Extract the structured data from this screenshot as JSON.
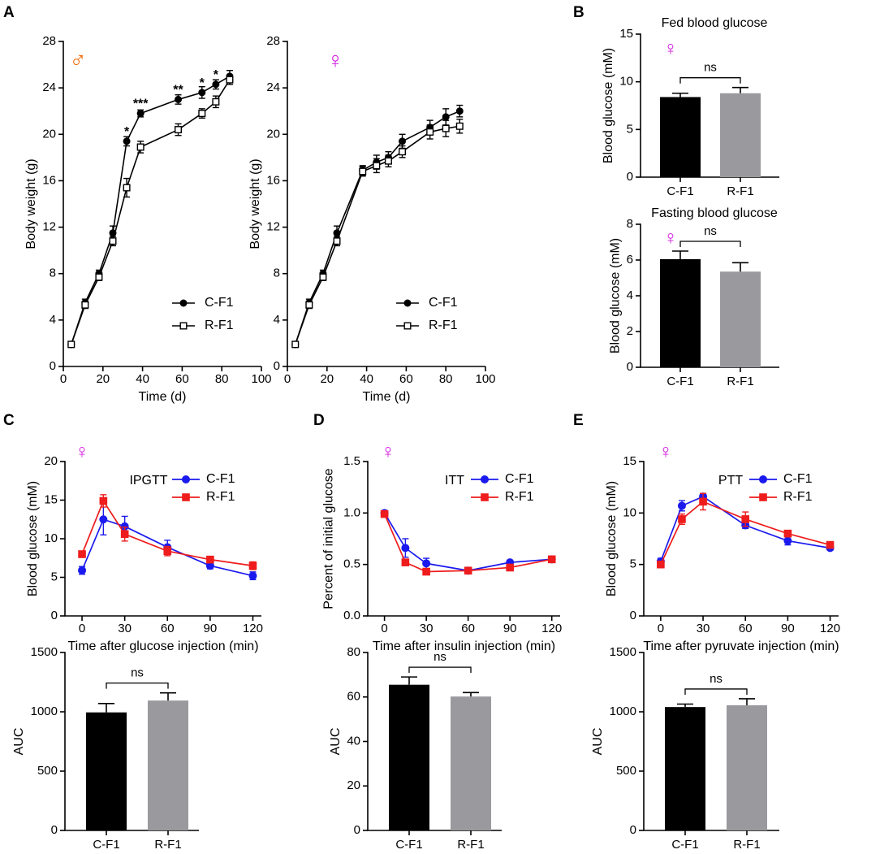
{
  "colors": {
    "black": "#000000",
    "gray": "#9a9a9e",
    "blue": "#1a1aee",
    "red": "#ee1c1c",
    "male": "#f06a0a",
    "female": "#d21ee0"
  },
  "chart_data": [
    {
      "id": "weight_male",
      "panel": "A",
      "type": "line",
      "sex_symbol": "♂",
      "sex_color": "male",
      "xlabel": "Time (d)",
      "ylabel": "Body weight (g)",
      "xlim": [
        0,
        100
      ],
      "ylim": [
        0,
        28
      ],
      "xticks": [
        0,
        20,
        40,
        60,
        80,
        100
      ],
      "yticks": [
        0,
        4,
        8,
        12,
        16,
        20,
        24,
        28
      ],
      "series": [
        {
          "name": "C-F1",
          "marker": "filled-circle",
          "x": [
            4,
            11,
            18,
            25,
            32,
            39,
            58,
            70,
            77,
            84
          ],
          "y": [
            1.9,
            5.5,
            8.0,
            11.5,
            19.4,
            21.8,
            23.0,
            23.6,
            24.3,
            25.0
          ],
          "err": [
            0.2,
            0.3,
            0.3,
            0.6,
            0.4,
            0.3,
            0.4,
            0.5,
            0.4,
            0.5
          ]
        },
        {
          "name": "R-F1",
          "marker": "open-square",
          "x": [
            4,
            11,
            18,
            25,
            32,
            39,
            58,
            70,
            77,
            84
          ],
          "y": [
            1.9,
            5.3,
            7.7,
            10.8,
            15.4,
            18.9,
            20.4,
            21.8,
            22.8,
            24.7
          ],
          "err": [
            0.2,
            0.3,
            0.3,
            0.4,
            0.8,
            0.5,
            0.5,
            0.4,
            0.5,
            0.4
          ]
        }
      ],
      "annotations": [
        {
          "text": "*",
          "x": 32,
          "y": 20.3
        },
        {
          "text": "***",
          "x": 39,
          "y": 22.7
        },
        {
          "text": "**",
          "x": 58,
          "y": 23.9
        },
        {
          "text": "*",
          "x": 70,
          "y": 24.5
        },
        {
          "text": "*",
          "x": 77,
          "y": 25.2
        }
      ],
      "legend": [
        "C-F1",
        "R-F1"
      ]
    },
    {
      "id": "weight_female",
      "panel": "",
      "type": "line",
      "sex_symbol": "♀",
      "sex_color": "female",
      "xlabel": "Time (d)",
      "ylabel": "Body weight (g)",
      "xlim": [
        0,
        100
      ],
      "ylim": [
        0,
        28
      ],
      "xticks": [
        0,
        20,
        40,
        60,
        80,
        100
      ],
      "yticks": [
        0,
        4,
        8,
        12,
        16,
        20,
        24,
        28
      ],
      "series": [
        {
          "name": "C-F1",
          "marker": "filled-circle",
          "x": [
            4,
            11,
            18,
            25,
            38,
            45,
            51,
            58,
            72,
            80,
            87
          ],
          "y": [
            1.9,
            5.5,
            8.0,
            11.5,
            16.9,
            17.6,
            18.0,
            19.4,
            20.6,
            21.5,
            22.0
          ],
          "err": [
            0.2,
            0.3,
            0.3,
            0.6,
            0.4,
            0.6,
            0.5,
            0.6,
            0.6,
            0.7,
            0.5
          ]
        },
        {
          "name": "R-F1",
          "marker": "open-square",
          "x": [
            4,
            11,
            18,
            25,
            38,
            45,
            51,
            58,
            72,
            80,
            87
          ],
          "y": [
            1.9,
            5.3,
            7.7,
            10.8,
            16.8,
            17.3,
            17.7,
            18.5,
            20.2,
            20.5,
            20.7
          ],
          "err": [
            0.2,
            0.3,
            0.3,
            0.4,
            0.4,
            0.6,
            0.5,
            0.5,
            0.6,
            0.7,
            0.6
          ]
        }
      ],
      "legend": [
        "C-F1",
        "R-F1"
      ]
    },
    {
      "id": "fed_glucose",
      "panel": "B",
      "type": "bar",
      "sex_symbol": "♀",
      "sex_color": "female",
      "title": "Fed blood glucose",
      "ylabel": "Blood glucose (mM)",
      "categories": [
        "C-F1",
        "R-F1"
      ],
      "values": [
        8.4,
        8.8
      ],
      "err": [
        0.4,
        0.6
      ],
      "bar_colors": [
        "black",
        "gray"
      ],
      "ylim": [
        0,
        15
      ],
      "yticks": [
        0,
        5,
        10,
        15
      ],
      "sig": "ns"
    },
    {
      "id": "fasting_glucose",
      "panel": "",
      "type": "bar",
      "sex_symbol": "♀",
      "sex_color": "female",
      "title": "Fasting blood glucose",
      "ylabel": "Blood glucose (mM)",
      "categories": [
        "C-F1",
        "R-F1"
      ],
      "values": [
        6.05,
        5.35
      ],
      "err": [
        0.45,
        0.5
      ],
      "bar_colors": [
        "black",
        "gray"
      ],
      "ylim": [
        0,
        8
      ],
      "yticks": [
        0,
        2,
        4,
        6,
        8
      ],
      "sig": "ns"
    },
    {
      "id": "ipgtt",
      "panel": "C",
      "type": "line",
      "sex_symbol": "♀",
      "sex_color": "female",
      "title": "IPGTT",
      "xlabel": "Time after glucose injection (min)",
      "ylabel": "Blood glucose (mM)",
      "xlim": [
        -12,
        126
      ],
      "ylim": [
        0,
        20
      ],
      "xticks": [
        0,
        30,
        60,
        90,
        120
      ],
      "yticks": [
        0,
        5,
        10,
        15,
        20
      ],
      "series": [
        {
          "name": "C-F1",
          "color": "blue",
          "marker": "circle",
          "x": [
            0,
            15,
            30,
            60,
            90,
            120
          ],
          "y": [
            5.9,
            12.5,
            11.6,
            8.9,
            6.5,
            5.2
          ],
          "err": [
            0.5,
            2.0,
            1.3,
            0.9,
            0.4,
            0.5
          ]
        },
        {
          "name": "R-F1",
          "color": "red",
          "marker": "square",
          "x": [
            0,
            15,
            30,
            60,
            90,
            120
          ],
          "y": [
            8.0,
            14.9,
            10.6,
            8.4,
            7.3,
            6.5
          ],
          "err": [
            0.3,
            0.8,
            0.9,
            0.6,
            0.3,
            0.5
          ]
        }
      ],
      "legend": [
        "C-F1",
        "R-F1"
      ]
    },
    {
      "id": "itt",
      "panel": "D",
      "type": "line",
      "sex_symbol": "♀",
      "sex_color": "female",
      "title": "ITT",
      "xlabel": "Time after insulin injection (min)",
      "ylabel": "Percent of initial glucose",
      "xlim": [
        -12,
        126
      ],
      "ylim": [
        0,
        1.5
      ],
      "xticks": [
        0,
        30,
        60,
        90,
        120
      ],
      "yticks": [
        0.0,
        0.5,
        1.0,
        1.5
      ],
      "ytick_labels": [
        "0.0",
        "0.5",
        "1.0",
        "1.5"
      ],
      "series": [
        {
          "name": "C-F1",
          "color": "blue",
          "marker": "circle",
          "x": [
            0,
            15,
            30,
            60,
            90,
            120
          ],
          "y": [
            1.0,
            0.66,
            0.51,
            0.44,
            0.52,
            0.55
          ],
          "err": [
            0.02,
            0.09,
            0.05,
            0.02,
            0.02,
            0.02
          ]
        },
        {
          "name": "R-F1",
          "color": "red",
          "marker": "square",
          "x": [
            0,
            15,
            30,
            60,
            90,
            120
          ],
          "y": [
            0.99,
            0.52,
            0.43,
            0.44,
            0.47,
            0.55
          ],
          "err": [
            0.02,
            0.02,
            0.02,
            0.02,
            0.02,
            0.02
          ]
        }
      ],
      "legend": [
        "C-F1",
        "R-F1"
      ]
    },
    {
      "id": "ptt",
      "panel": "E",
      "type": "line",
      "sex_symbol": "♀",
      "sex_color": "female",
      "title": "PTT",
      "xlabel": "Time after pyruvate injection (min)",
      "ylabel": "Blood glucose (mM)",
      "xlim": [
        -12,
        126
      ],
      "ylim": [
        0,
        15
      ],
      "xticks": [
        0,
        30,
        60,
        90,
        120
      ],
      "yticks": [
        0,
        5,
        10,
        15
      ],
      "series": [
        {
          "name": "C-F1",
          "color": "blue",
          "marker": "circle",
          "x": [
            0,
            15,
            30,
            60,
            90,
            120
          ],
          "y": [
            5.3,
            10.7,
            11.6,
            8.8,
            7.3,
            6.6
          ],
          "err": [
            0.3,
            0.5,
            0.3,
            0.3,
            0.4,
            0.2
          ]
        },
        {
          "name": "R-F1",
          "color": "red",
          "marker": "square",
          "x": [
            0,
            15,
            30,
            60,
            90,
            120
          ],
          "y": [
            5.0,
            9.4,
            11.1,
            9.4,
            8.0,
            6.9
          ],
          "err": [
            0.3,
            0.5,
            0.8,
            0.7,
            0.3,
            0.2
          ]
        }
      ],
      "legend": [
        "C-F1",
        "R-F1"
      ]
    },
    {
      "id": "ipgtt_auc",
      "type": "bar",
      "ylabel": "AUC",
      "categories": [
        "C-F1",
        "R-F1"
      ],
      "values": [
        995,
        1095
      ],
      "err": [
        75,
        65
      ],
      "bar_colors": [
        "black",
        "gray"
      ],
      "ylim": [
        0,
        1500
      ],
      "yticks": [
        0,
        500,
        1000,
        1500
      ],
      "sig": "ns"
    },
    {
      "id": "itt_auc",
      "type": "bar",
      "ylabel": "AUC",
      "categories": [
        "C-F1",
        "R-F1"
      ],
      "values": [
        65.5,
        60.2
      ],
      "err": [
        3.5,
        1.8
      ],
      "bar_colors": [
        "black",
        "gray"
      ],
      "ylim": [
        0,
        80
      ],
      "yticks": [
        0,
        20,
        40,
        60,
        80
      ],
      "sig": "ns"
    },
    {
      "id": "ptt_auc",
      "type": "bar",
      "ylabel": "AUC",
      "categories": [
        "C-F1",
        "R-F1"
      ],
      "values": [
        1040,
        1055
      ],
      "err": [
        25,
        55
      ],
      "bar_colors": [
        "black",
        "gray"
      ],
      "ylim": [
        0,
        1500
      ],
      "yticks": [
        0,
        500,
        1000,
        1500
      ],
      "sig": "ns"
    }
  ]
}
